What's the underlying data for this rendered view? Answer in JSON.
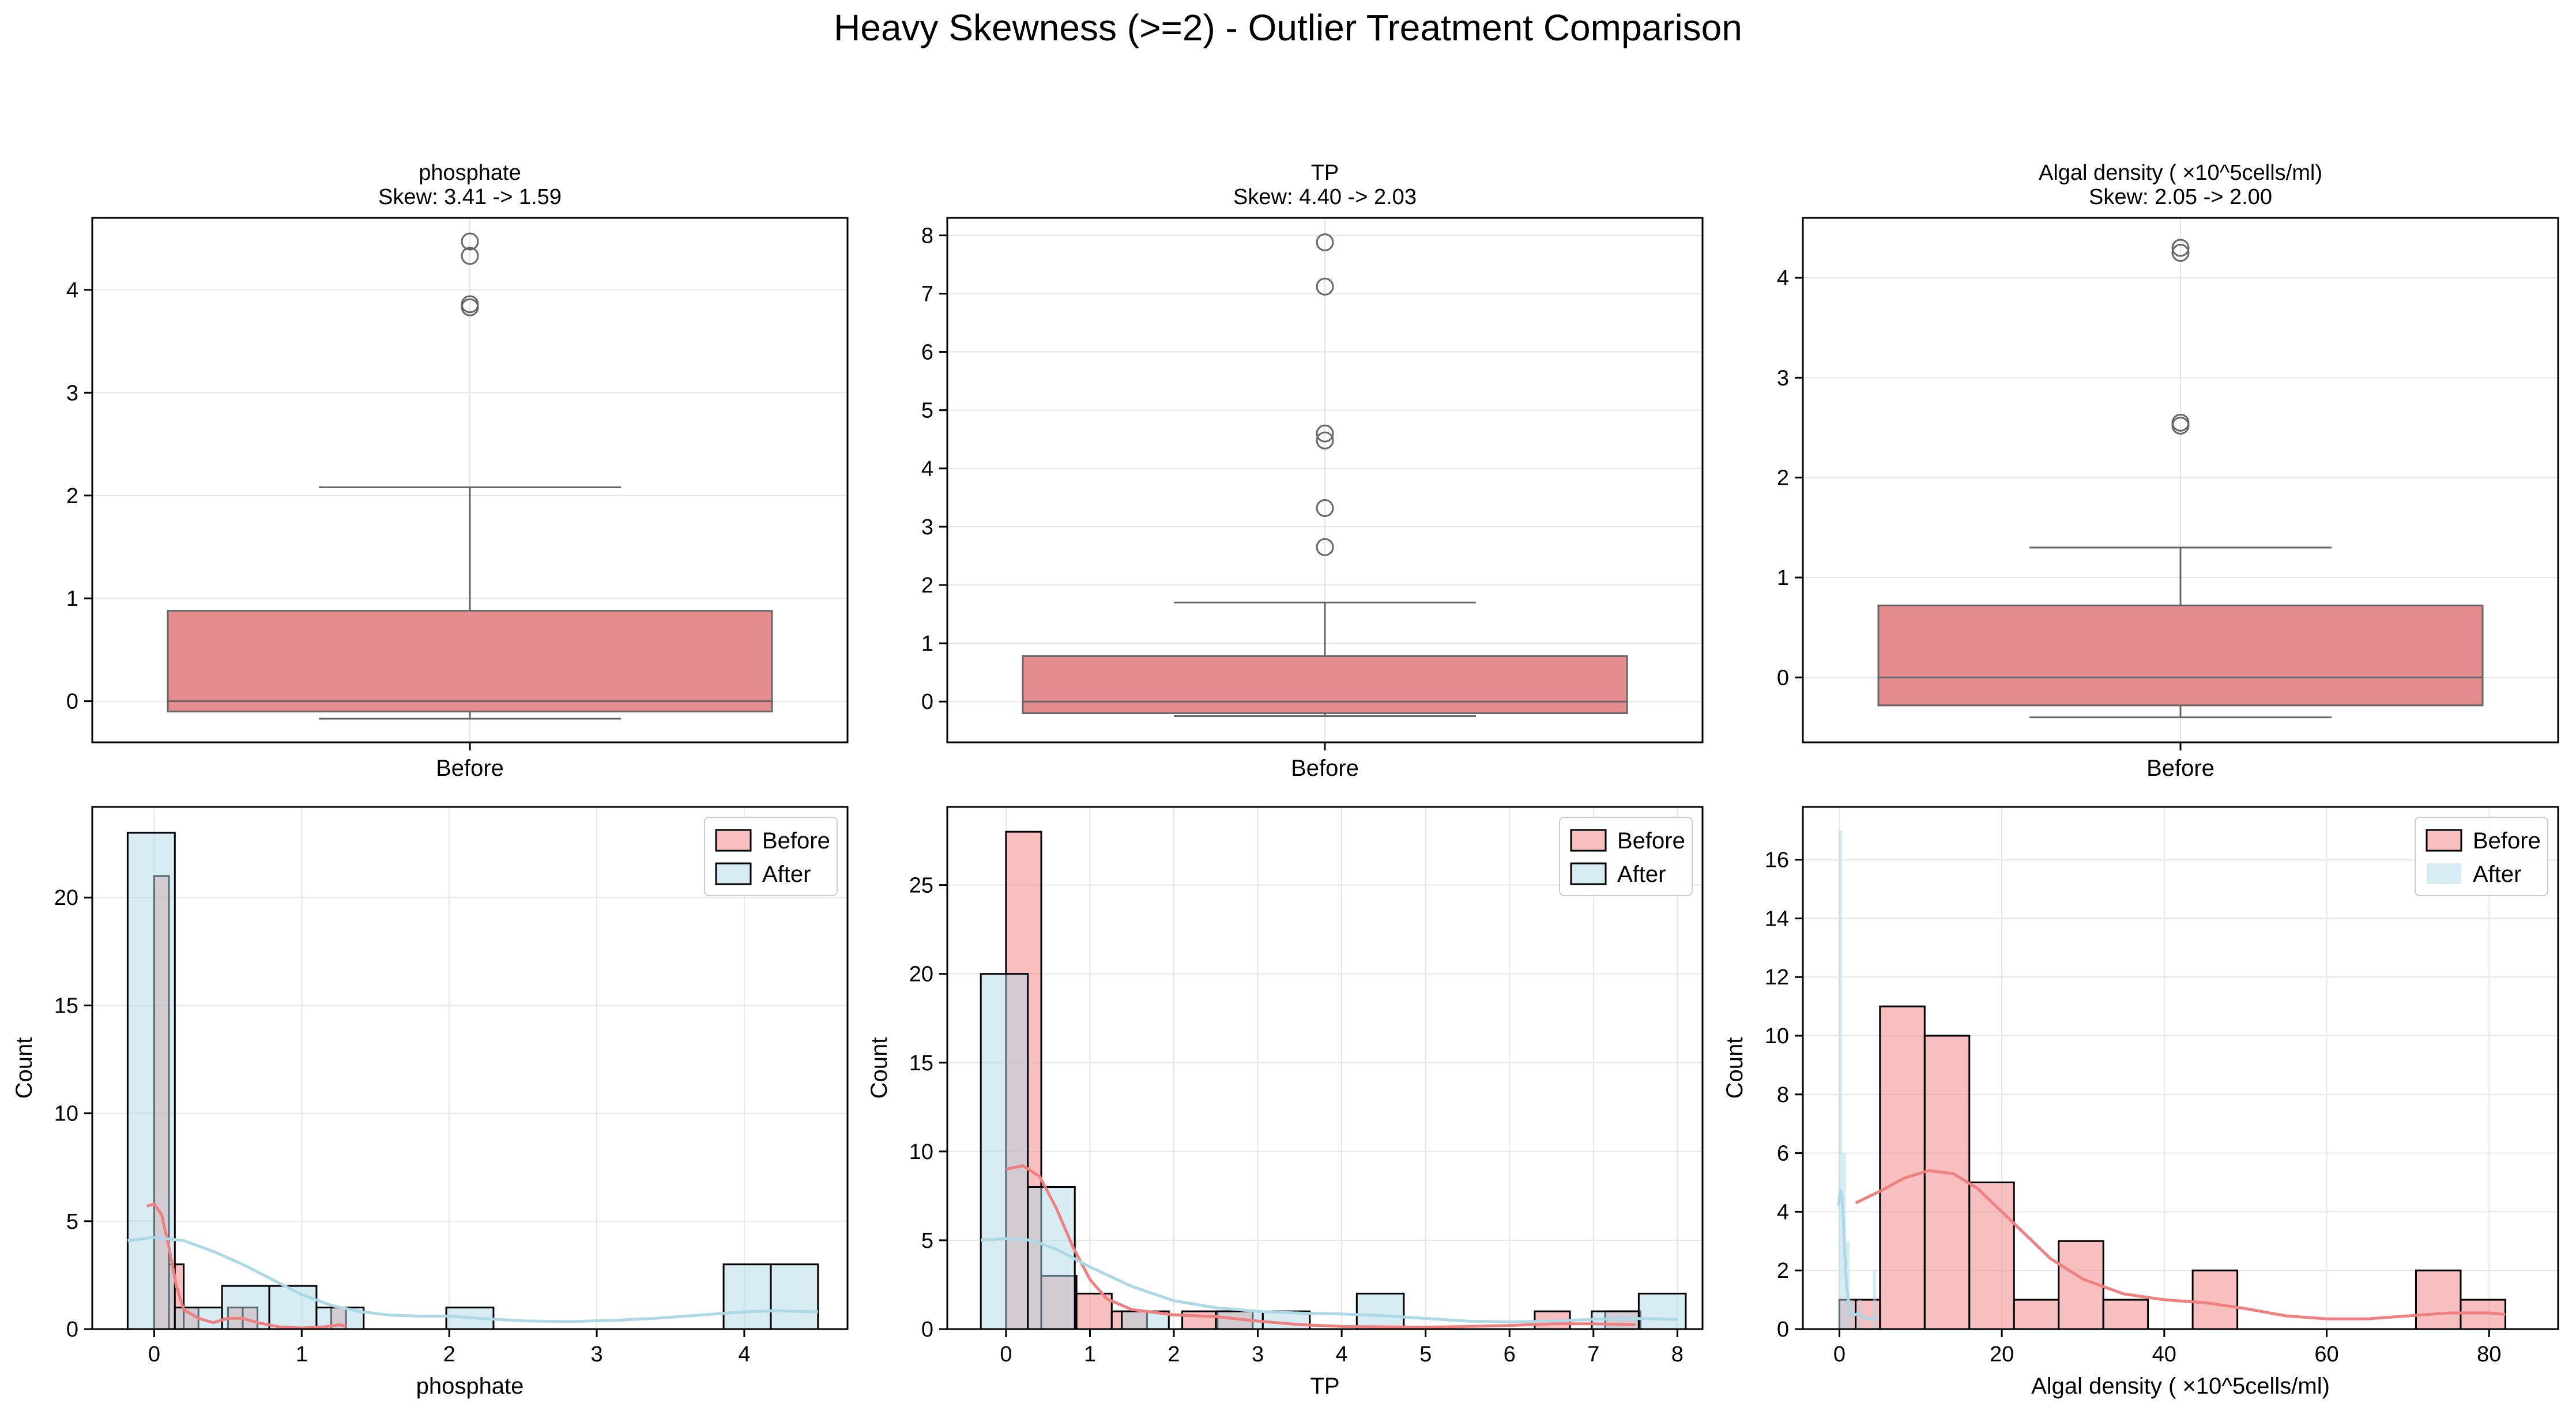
{
  "figure": {
    "title": "Heavy Skewness (>=2) - Outlier Treatment Comparison"
  },
  "colors": {
    "before": "#f08080",
    "before_box": "#e48c8e",
    "after": "#add8e6",
    "grid": "#e6e6e6",
    "line_gray": "#666666"
  },
  "chart_data": [
    {
      "type": "box",
      "title": "phosphate",
      "subtitle": "Skew: 3.41 -> 1.59",
      "category": "Before",
      "ylim": [
        -0.4,
        4.7
      ],
      "yticks": [
        0,
        1,
        2,
        3,
        4
      ],
      "box": {
        "q1": -0.1,
        "median": 0.0,
        "q3": 0.88,
        "whisker_low": -0.17,
        "whisker_high": 2.08
      },
      "outliers": [
        4.47,
        4.33,
        3.86,
        3.83
      ]
    },
    {
      "type": "box",
      "title": "TP",
      "subtitle": "Skew: 4.40 -> 2.03",
      "category": "Before",
      "ylim": [
        -0.7,
        8.3
      ],
      "yticks": [
        0,
        1,
        2,
        3,
        4,
        5,
        6,
        7,
        8
      ],
      "box": {
        "q1": -0.2,
        "median": 0.0,
        "q3": 0.78,
        "whisker_low": -0.25,
        "whisker_high": 1.7
      },
      "outliers": [
        7.88,
        7.12,
        4.6,
        4.48,
        3.32,
        2.65
      ]
    },
    {
      "type": "box",
      "title": "Algal density ( ×10^5cells/ml)",
      "subtitle": "Skew: 2.05 -> 2.00",
      "category": "Before",
      "ylim": [
        -0.65,
        4.6
      ],
      "yticks": [
        0,
        1,
        2,
        3,
        4
      ],
      "box": {
        "q1": -0.28,
        "median": 0.0,
        "q3": 0.72,
        "whisker_low": -0.4,
        "whisker_high": 1.3
      },
      "outliers": [
        4.3,
        4.25,
        2.55,
        2.52
      ]
    },
    {
      "type": "histogram",
      "xlabel": "phosphate",
      "ylabel": "Count",
      "xlim": [
        -0.42,
        4.7
      ],
      "ylim": [
        0,
        24.2
      ],
      "xticks": [
        0,
        1,
        2,
        3,
        4
      ],
      "yticks": [
        0,
        5,
        10,
        15,
        20
      ],
      "legend": {
        "position": "top-right",
        "before_label": "Before",
        "after_label": "After",
        "after_edge": true
      },
      "before_bins": [
        {
          "x0": 0.0,
          "x1": 0.1,
          "count": 21
        },
        {
          "x0": 0.1,
          "x1": 0.2,
          "count": 3
        },
        {
          "x0": 0.2,
          "x1": 0.3,
          "count": 1
        },
        {
          "x0": 0.5,
          "x1": 0.6,
          "count": 1
        },
        {
          "x0": 0.6,
          "x1": 0.7,
          "count": 1
        },
        {
          "x0": 1.2,
          "x1": 1.3,
          "count": 1
        }
      ],
      "after_bins": [
        {
          "x0": -0.18,
          "x1": 0.14,
          "count": 23
        },
        {
          "x0": 0.14,
          "x1": 0.46,
          "count": 1
        },
        {
          "x0": 0.46,
          "x1": 0.78,
          "count": 2
        },
        {
          "x0": 0.78,
          "x1": 1.1,
          "count": 2
        },
        {
          "x0": 1.1,
          "x1": 1.42,
          "count": 1
        },
        {
          "x0": 1.98,
          "x1": 2.3,
          "count": 1
        },
        {
          "x0": 3.86,
          "x1": 4.18,
          "count": 3
        },
        {
          "x0": 4.18,
          "x1": 4.5,
          "count": 3
        }
      ],
      "before_kde": [
        [
          -0.05,
          5.7
        ],
        [
          0.0,
          5.8
        ],
        [
          0.05,
          5.3
        ],
        [
          0.1,
          3.8
        ],
        [
          0.15,
          2.0
        ],
        [
          0.2,
          0.9
        ],
        [
          0.3,
          0.5
        ],
        [
          0.4,
          0.3
        ],
        [
          0.5,
          0.5
        ],
        [
          0.6,
          0.5
        ],
        [
          0.7,
          0.3
        ],
        [
          0.85,
          0.1
        ],
        [
          1.0,
          0.05
        ],
        [
          1.15,
          0.1
        ],
        [
          1.25,
          0.2
        ],
        [
          1.3,
          0.15
        ]
      ],
      "after_kde": [
        [
          -0.18,
          4.1
        ],
        [
          0.0,
          4.25
        ],
        [
          0.2,
          4.1
        ],
        [
          0.4,
          3.6
        ],
        [
          0.6,
          3.0
        ],
        [
          0.8,
          2.3
        ],
        [
          1.0,
          1.6
        ],
        [
          1.2,
          1.1
        ],
        [
          1.4,
          0.8
        ],
        [
          1.6,
          0.65
        ],
        [
          1.8,
          0.6
        ],
        [
          2.0,
          0.6
        ],
        [
          2.2,
          0.5
        ],
        [
          2.5,
          0.38
        ],
        [
          2.8,
          0.35
        ],
        [
          3.1,
          0.4
        ],
        [
          3.4,
          0.5
        ],
        [
          3.7,
          0.65
        ],
        [
          4.0,
          0.8
        ],
        [
          4.2,
          0.85
        ],
        [
          4.5,
          0.8
        ]
      ]
    },
    {
      "type": "histogram",
      "xlabel": "TP",
      "ylabel": "Count",
      "xlim": [
        -0.7,
        8.3
      ],
      "ylim": [
        0,
        29.4
      ],
      "xticks": [
        0,
        1,
        2,
        3,
        4,
        5,
        6,
        7,
        8
      ],
      "yticks": [
        0,
        5,
        10,
        15,
        20,
        25
      ],
      "legend": {
        "position": "top-right",
        "before_label": "Before",
        "after_label": "After",
        "after_edge": true
      },
      "before_bins": [
        {
          "x0": 0.0,
          "x1": 0.42,
          "count": 28
        },
        {
          "x0": 0.42,
          "x1": 0.84,
          "count": 3
        },
        {
          "x0": 0.84,
          "x1": 1.26,
          "count": 2
        },
        {
          "x0": 1.26,
          "x1": 1.68,
          "count": 1
        },
        {
          "x0": 2.1,
          "x1": 2.52,
          "count": 1
        },
        {
          "x0": 2.52,
          "x1": 2.94,
          "count": 1
        },
        {
          "x0": 6.3,
          "x1": 6.72,
          "count": 1
        },
        {
          "x0": 7.14,
          "x1": 7.56,
          "count": 1
        }
      ],
      "after_bins": [
        {
          "x0": -0.3,
          "x1": 0.26,
          "count": 20
        },
        {
          "x0": 0.26,
          "x1": 0.82,
          "count": 8
        },
        {
          "x0": 1.38,
          "x1": 1.94,
          "count": 1
        },
        {
          "x0": 2.5,
          "x1": 3.06,
          "count": 1
        },
        {
          "x0": 3.06,
          "x1": 3.62,
          "count": 1
        },
        {
          "x0": 4.18,
          "x1": 4.74,
          "count": 2
        },
        {
          "x0": 6.98,
          "x1": 7.54,
          "count": 1
        },
        {
          "x0": 7.54,
          "x1": 8.1,
          "count": 2
        }
      ],
      "before_kde": [
        [
          0.0,
          9.0
        ],
        [
          0.2,
          9.2
        ],
        [
          0.4,
          8.6
        ],
        [
          0.6,
          6.8
        ],
        [
          0.8,
          4.6
        ],
        [
          1.0,
          2.8
        ],
        [
          1.2,
          1.7
        ],
        [
          1.5,
          1.1
        ],
        [
          2.0,
          0.8
        ],
        [
          2.5,
          0.7
        ],
        [
          3.0,
          0.45
        ],
        [
          3.5,
          0.25
        ],
        [
          4.0,
          0.15
        ],
        [
          5.0,
          0.1
        ],
        [
          6.0,
          0.2
        ],
        [
          6.5,
          0.3
        ],
        [
          7.0,
          0.3
        ],
        [
          7.5,
          0.25
        ]
      ],
      "after_kde": [
        [
          -0.3,
          5.0
        ],
        [
          0.0,
          5.1
        ],
        [
          0.3,
          5.0
        ],
        [
          0.6,
          4.5
        ],
        [
          1.0,
          3.5
        ],
        [
          1.5,
          2.4
        ],
        [
          2.0,
          1.6
        ],
        [
          2.5,
          1.2
        ],
        [
          3.0,
          1.0
        ],
        [
          3.5,
          0.9
        ],
        [
          4.0,
          0.85
        ],
        [
          4.5,
          0.75
        ],
        [
          5.0,
          0.6
        ],
        [
          5.5,
          0.45
        ],
        [
          6.0,
          0.4
        ],
        [
          6.5,
          0.45
        ],
        [
          7.0,
          0.55
        ],
        [
          7.5,
          0.6
        ],
        [
          8.0,
          0.55
        ]
      ]
    },
    {
      "type": "histogram",
      "xlabel": "Algal density ( ×10^5cells/ml)",
      "ylabel": "Count",
      "xlim": [
        -4.5,
        88.5
      ],
      "ylim": [
        0,
        17.8
      ],
      "xticks": [
        0,
        20,
        40,
        60,
        80
      ],
      "yticks": [
        0,
        2,
        4,
        6,
        8,
        10,
        12,
        14,
        16
      ],
      "legend": {
        "position": "top-right",
        "before_label": "Before",
        "after_label": "After",
        "after_edge": false
      },
      "before_bins": [
        {
          "x0": 0.0,
          "x1": 2.0,
          "count": 1
        },
        {
          "x0": 2.0,
          "x1": 5.0,
          "count": 1
        },
        {
          "x0": 5.0,
          "x1": 10.5,
          "count": 11
        },
        {
          "x0": 10.5,
          "x1": 16.0,
          "count": 10
        },
        {
          "x0": 16.0,
          "x1": 21.5,
          "count": 5
        },
        {
          "x0": 21.5,
          "x1": 27.0,
          "count": 1
        },
        {
          "x0": 27.0,
          "x1": 32.5,
          "count": 3
        },
        {
          "x0": 32.5,
          "x1": 38.0,
          "count": 1
        },
        {
          "x0": 43.5,
          "x1": 49.0,
          "count": 2
        },
        {
          "x0": 71.0,
          "x1": 76.5,
          "count": 2
        },
        {
          "x0": 76.5,
          "x1": 82.0,
          "count": 1
        }
      ],
      "after_bins": [
        {
          "x0": -0.1,
          "x1": 0.35,
          "count": 17
        },
        {
          "x0": 0.35,
          "x1": 0.8,
          "count": 6
        },
        {
          "x0": 0.8,
          "x1": 1.25,
          "count": 3
        },
        {
          "x0": 1.25,
          "x1": 1.7,
          "count": 1
        },
        {
          "x0": 2.3,
          "x1": 2.75,
          "count": 1
        },
        {
          "x0": 4.1,
          "x1": 4.55,
          "count": 2
        }
      ],
      "before_kde": [
        [
          2,
          4.3
        ],
        [
          5,
          4.7
        ],
        [
          8,
          5.15
        ],
        [
          11,
          5.4
        ],
        [
          14,
          5.3
        ],
        [
          17,
          4.8
        ],
        [
          20,
          4.0
        ],
        [
          23,
          3.2
        ],
        [
          26,
          2.4
        ],
        [
          30,
          1.7
        ],
        [
          35,
          1.2
        ],
        [
          40,
          1.0
        ],
        [
          45,
          0.9
        ],
        [
          50,
          0.7
        ],
        [
          55,
          0.45
        ],
        [
          60,
          0.35
        ],
        [
          65,
          0.35
        ],
        [
          70,
          0.45
        ],
        [
          75,
          0.55
        ],
        [
          80,
          0.55
        ],
        [
          82,
          0.5
        ]
      ],
      "after_kde": [
        [
          -0.1,
          4.2
        ],
        [
          0.1,
          4.7
        ],
        [
          0.3,
          4.6
        ],
        [
          0.5,
          3.6
        ],
        [
          0.7,
          2.4
        ],
        [
          0.9,
          1.4
        ],
        [
          1.2,
          0.8
        ],
        [
          1.6,
          0.5
        ],
        [
          2.0,
          0.5
        ],
        [
          2.4,
          0.55
        ],
        [
          2.8,
          0.45
        ],
        [
          3.3,
          0.35
        ],
        [
          3.8,
          0.35
        ],
        [
          4.3,
          0.4
        ],
        [
          4.6,
          0.3
        ]
      ]
    }
  ]
}
